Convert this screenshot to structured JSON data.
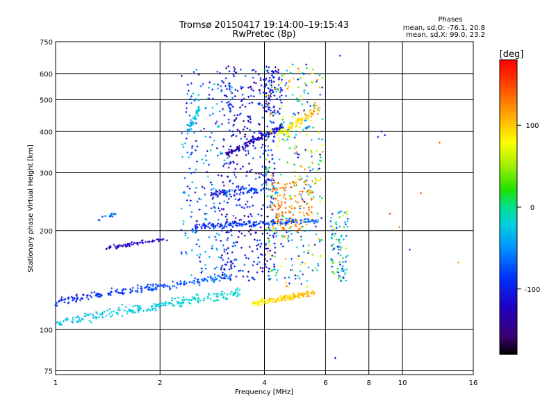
{
  "chart_data": {
    "type": "scatter",
    "title": "Tromsø 20150417 19:14:00–19:15:43",
    "subtitle": "RwPretec (8p)",
    "xlabel": "Frequency [MHz]",
    "ylabel": "Stationary phase Virtual Height [km]",
    "x_scale": "log",
    "y_scale": "log",
    "xlim": [
      1,
      16
    ],
    "ylim": [
      73,
      750
    ],
    "x_ticks": [
      1,
      2,
      4,
      6,
      8,
      10,
      16
    ],
    "x_tick_labels": [
      "1",
      "2",
      "4",
      "6",
      "8",
      "10",
      "16"
    ],
    "y_ticks": [
      75,
      100,
      200,
      300,
      400,
      500,
      600,
      750
    ],
    "y_tick_labels": [
      "75",
      "100",
      "200",
      "300",
      "400",
      "500",
      "600",
      "750"
    ],
    "grid": true,
    "colorbar": {
      "label": "[deg]",
      "range": [
        -180,
        180
      ],
      "ticks": [
        100,
        0,
        -100
      ],
      "tick_labels": [
        "100",
        "0",
        "-100"
      ]
    },
    "stats": {
      "heading": "Phases",
      "O_line": "mean, sd,O: -76.1, 20.8",
      "X_line": "mean, sd,X:  99.0, 23.2"
    },
    "series": [
      {
        "type": "band",
        "x": [
          1.0,
          3.4
        ],
        "y": [
          105,
          130
        ],
        "jitter": 0.05,
        "n": 220,
        "phase": [
          -30,
          -15
        ],
        "spread": 12
      },
      {
        "type": "band",
        "x": [
          1.0,
          3.2
        ],
        "y": [
          122,
          145
        ],
        "jitter": 0.04,
        "n": 200,
        "phase": [
          -100,
          -60
        ],
        "spread": 18
      },
      {
        "type": "band",
        "x": [
          1.4,
          2.1
        ],
        "y": [
          177,
          189
        ],
        "jitter": 0.02,
        "n": 60,
        "phase": [
          -125,
          -115
        ],
        "spread": 8
      },
      {
        "type": "band",
        "x": [
          1.3,
          1.5
        ],
        "y": [
          215,
          225
        ],
        "jitter": 0.02,
        "n": 14,
        "phase": [
          -70,
          -60
        ],
        "spread": 10
      },
      {
        "type": "band",
        "x": [
          2.5,
          5.8
        ],
        "y": [
          205,
          215
        ],
        "jitter": 0.03,
        "n": 170,
        "phase": [
          -100,
          -60
        ],
        "spread": 25
      },
      {
        "type": "band",
        "x": [
          2.8,
          4.0
        ],
        "y": [
          258,
          268
        ],
        "jitter": 0.04,
        "n": 70,
        "phase": [
          -110,
          -70
        ],
        "spread": 20
      },
      {
        "type": "band",
        "x": [
          3.1,
          4.5
        ],
        "y": [
          340,
          415
        ],
        "jitter": 0.03,
        "n": 120,
        "phase": [
          -140,
          -110
        ],
        "spread": 15
      },
      {
        "type": "band",
        "x": [
          2.4,
          2.6
        ],
        "y": [
          400,
          470
        ],
        "jitter": 0.05,
        "n": 50,
        "phase": [
          -40,
          -20
        ],
        "spread": 12
      },
      {
        "type": "band",
        "x": [
          3.7,
          5.6
        ],
        "y": [
          120,
          130
        ],
        "jitter": 0.03,
        "n": 140,
        "phase": [
          80,
          110
        ],
        "spread": 20
      },
      {
        "type": "band",
        "x": [
          4.4,
          5.8
        ],
        "y": [
          385,
          480
        ],
        "jitter": 0.06,
        "n": 80,
        "phase": [
          70,
          120
        ],
        "spread": 25
      },
      {
        "type": "cloud",
        "x": [
          2.3,
          3.3
        ],
        "y": [
          140,
          620
        ],
        "n": 250,
        "phase": [
          -120,
          -10
        ],
        "spread": 20
      },
      {
        "type": "cloud",
        "x": [
          3.0,
          4.3
        ],
        "y": [
          140,
          640
        ],
        "n": 420,
        "phase": [
          -150,
          -70
        ],
        "spread": 25
      },
      {
        "type": "cloud",
        "x": [
          4.0,
          5.9
        ],
        "y": [
          135,
          640
        ],
        "n": 380,
        "phase": [
          -120,
          130
        ],
        "spread": 30
      },
      {
        "type": "cloud",
        "x": [
          4.2,
          5.5
        ],
        "y": [
          200,
          290
        ],
        "n": 120,
        "phase": [
          110,
          150
        ],
        "spread": 20
      },
      {
        "type": "cloud",
        "x": [
          6.2,
          7.0
        ],
        "y": [
          140,
          230
        ],
        "n": 90,
        "phase": [
          -100,
          60
        ],
        "spread": 40
      },
      {
        "type": "cloud",
        "x": [
          4.0,
          4.5
        ],
        "y": [
          450,
          640
        ],
        "n": 60,
        "phase": [
          -130,
          -90
        ],
        "spread": 15
      },
      {
        "type": "points",
        "x": [
          6.4,
          6.6,
          8.5,
          8.9,
          9.2,
          10.5,
          11.3,
          12.8,
          14.5,
          9.8,
          8.7
        ],
        "y": [
          82,
          680,
          385,
          390,
          225,
          175,
          260,
          370,
          160,
          205,
          400
        ],
        "phase": [
          -120,
          -90,
          -90,
          -100,
          150,
          -100,
          150,
          140,
          110,
          130,
          -120
        ]
      }
    ]
  }
}
